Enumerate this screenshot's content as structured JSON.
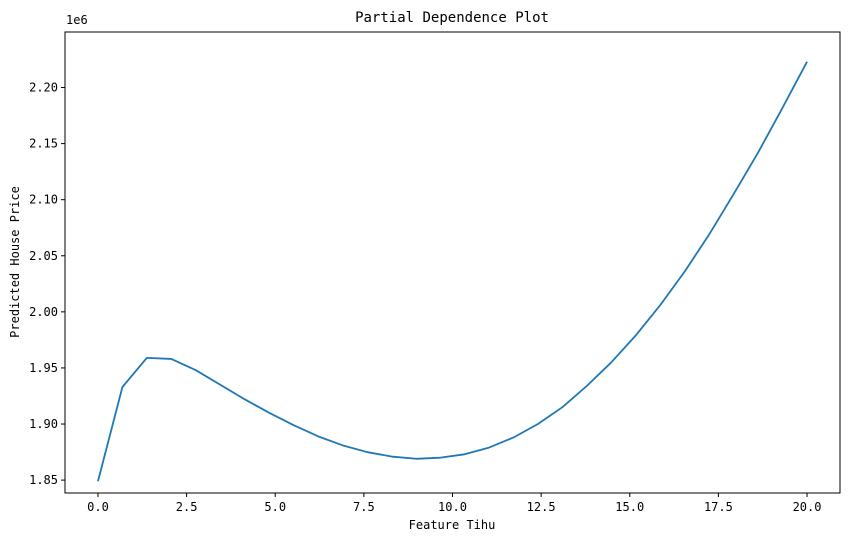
{
  "chart_data": {
    "type": "line",
    "title": "Partial Dependence Plot",
    "xlabel": "Feature Tihu",
    "ylabel": "Predicted House Price",
    "y_offset_label": "1e6",
    "xlim": [
      -0.93,
      20.93
    ],
    "ylim": [
      1.8385,
      2.2495
    ],
    "xticks": [
      0.0,
      2.5,
      5.0,
      7.5,
      10.0,
      12.5,
      15.0,
      17.5,
      20.0
    ],
    "xtick_labels": [
      "0.0",
      "2.5",
      "5.0",
      "7.5",
      "10.0",
      "12.5",
      "15.0",
      "17.5",
      "20.0"
    ],
    "yticks": [
      1.85,
      1.9,
      1.95,
      2.0,
      2.05,
      2.1,
      2.15,
      2.2
    ],
    "ytick_labels": [
      "1.85",
      "1.90",
      "1.95",
      "2.00",
      "2.05",
      "2.10",
      "2.15",
      "2.20"
    ],
    "grid": false,
    "series": [
      {
        "color": "#1f77b4",
        "x": [
          0.0,
          0.69,
          1.38,
          2.07,
          2.76,
          3.45,
          4.14,
          4.83,
          5.52,
          6.21,
          6.9,
          7.59,
          8.28,
          8.97,
          9.66,
          10.34,
          11.03,
          11.72,
          12.41,
          13.1,
          13.79,
          14.48,
          15.17,
          15.86,
          16.55,
          17.24,
          17.93,
          18.62,
          19.31,
          20.0
        ],
        "y": [
          1.849,
          1.933,
          1.959,
          1.958,
          1.948,
          1.935,
          1.922,
          1.91,
          1.899,
          1.889,
          1.881,
          1.875,
          1.871,
          1.869,
          1.87,
          1.873,
          1.879,
          1.888,
          1.9,
          1.915,
          1.934,
          1.955,
          1.979,
          2.006,
          2.036,
          2.069,
          2.105,
          2.142,
          2.182,
          2.223
        ]
      }
    ]
  }
}
